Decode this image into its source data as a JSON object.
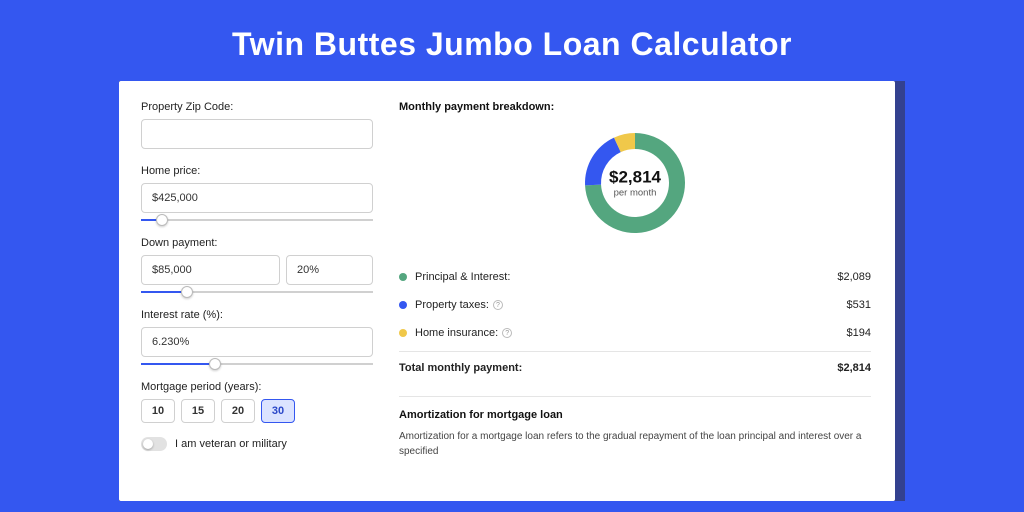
{
  "title": "Twin Buttes Jumbo Loan Calculator",
  "colors": {
    "page_bg": "#3457f0",
    "card_bg": "#ffffff",
    "accent": "#3457f0"
  },
  "form": {
    "zip": {
      "label": "Property Zip Code:",
      "value": ""
    },
    "home_price": {
      "label": "Home price:",
      "value": "$425,000",
      "slider_pct": 9
    },
    "down_payment": {
      "label": "Down payment:",
      "amount": "$85,000",
      "pct": "20%",
      "slider_pct": 20
    },
    "interest_rate": {
      "label": "Interest rate (%):",
      "value": "6.230%",
      "slider_pct": 32
    },
    "mortgage_period": {
      "label": "Mortgage period (years):",
      "options": [
        "10",
        "15",
        "20",
        "30"
      ],
      "selected": "30"
    },
    "veteran": {
      "label": "I am veteran or military",
      "on": false
    }
  },
  "breakdown": {
    "heading": "Monthly payment breakdown:",
    "center_value": "$2,814",
    "center_sub": "per month",
    "items": [
      {
        "label": "Principal & Interest:",
        "value": "$2,089",
        "amount": 2089,
        "color": "#54a67f",
        "info": false
      },
      {
        "label": "Property taxes:",
        "value": "$531",
        "amount": 531,
        "color": "#3457f0",
        "info": true
      },
      {
        "label": "Home insurance:",
        "value": "$194",
        "amount": 194,
        "color": "#f0c84a",
        "info": true
      }
    ],
    "total_label": "Total monthly payment:",
    "total_value": "$2,814",
    "donut": {
      "type": "donut",
      "radius": 50,
      "thickness": 16,
      "background": "#ffffff",
      "slices": [
        {
          "color": "#54a67f",
          "value": 2089
        },
        {
          "color": "#3457f0",
          "value": 531
        },
        {
          "color": "#f0c84a",
          "value": 194
        }
      ]
    }
  },
  "amortization": {
    "heading": "Amortization for mortgage loan",
    "text": "Amortization for a mortgage loan refers to the gradual repayment of the loan principal and interest over a specified"
  }
}
